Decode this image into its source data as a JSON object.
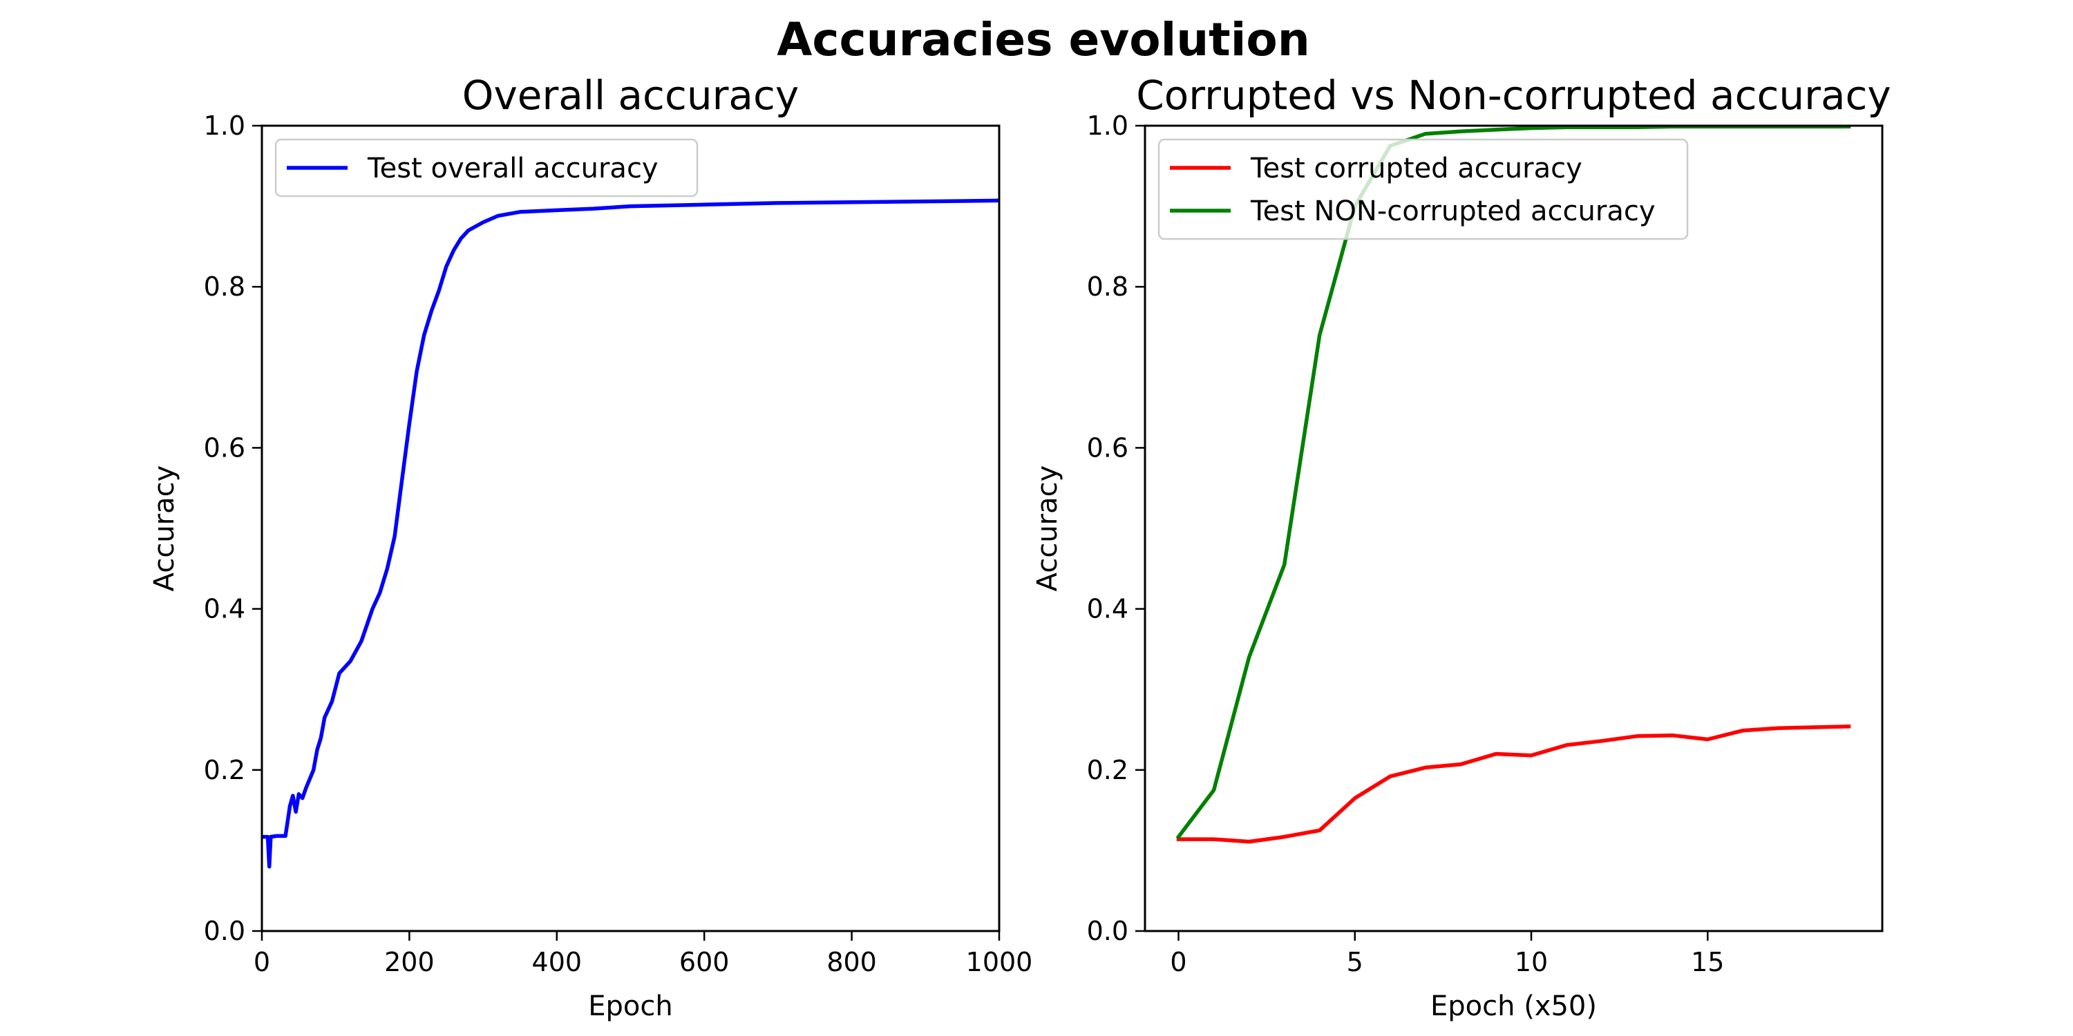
{
  "figure": {
    "suptitle": "Accuracies evolution"
  },
  "chart_data": [
    {
      "type": "line",
      "title": "Overall accuracy",
      "xlabel": "Epoch",
      "ylabel": "Accuracy",
      "xlim": [
        0,
        1000
      ],
      "ylim": [
        0,
        1.0
      ],
      "xticks": [
        0,
        200,
        400,
        600,
        800,
        1000
      ],
      "yticks": [
        0.0,
        0.2,
        0.4,
        0.6,
        0.8,
        1.0
      ],
      "legend_position": "top-left",
      "grid": false,
      "series": [
        {
          "name": "Test overall accuracy",
          "color": "#0000ff",
          "points": [
            [
              1,
              0.117
            ],
            [
              8,
              0.117
            ],
            [
              10,
              0.08
            ],
            [
              12,
              0.117
            ],
            [
              20,
              0.118
            ],
            [
              32,
              0.118
            ],
            [
              38,
              0.155
            ],
            [
              42,
              0.168
            ],
            [
              46,
              0.148
            ],
            [
              50,
              0.17
            ],
            [
              55,
              0.165
            ],
            [
              60,
              0.178
            ],
            [
              70,
              0.2
            ],
            [
              75,
              0.225
            ],
            [
              80,
              0.24
            ],
            [
              85,
              0.265
            ],
            [
              95,
              0.285
            ],
            [
              105,
              0.32
            ],
            [
              120,
              0.335
            ],
            [
              135,
              0.36
            ],
            [
              150,
              0.4
            ],
            [
              160,
              0.42
            ],
            [
              170,
              0.45
            ],
            [
              180,
              0.49
            ],
            [
              190,
              0.56
            ],
            [
              200,
              0.63
            ],
            [
              210,
              0.695
            ],
            [
              220,
              0.74
            ],
            [
              230,
              0.77
            ],
            [
              240,
              0.795
            ],
            [
              250,
              0.825
            ],
            [
              260,
              0.845
            ],
            [
              270,
              0.86
            ],
            [
              280,
              0.87
            ],
            [
              300,
              0.88
            ],
            [
              320,
              0.888
            ],
            [
              350,
              0.893
            ],
            [
              400,
              0.895
            ],
            [
              450,
              0.897
            ],
            [
              500,
              0.9
            ],
            [
              600,
              0.902
            ],
            [
              700,
              0.904
            ],
            [
              800,
              0.905
            ],
            [
              900,
              0.906
            ],
            [
              1000,
              0.907
            ]
          ]
        }
      ]
    },
    {
      "type": "line",
      "title": "Corrupted vs Non-corrupted accuracy",
      "xlabel": "Epoch (x50)",
      "ylabel": "Accuracy",
      "xlim": [
        -0.95,
        19.95
      ],
      "ylim": [
        0,
        1.0
      ],
      "xticks": [
        0,
        5,
        10,
        15
      ],
      "yticks": [
        0.0,
        0.2,
        0.4,
        0.6,
        0.8,
        1.0
      ],
      "legend_position": "top-left",
      "grid": false,
      "series": [
        {
          "name": "Test corrupted accuracy",
          "color": "#ff0000",
          "points": [
            [
              0,
              0.114
            ],
            [
              1,
              0.114
            ],
            [
              2,
              0.111
            ],
            [
              3,
              0.117
            ],
            [
              4,
              0.125
            ],
            [
              5,
              0.165
            ],
            [
              6,
              0.192
            ],
            [
              7,
              0.203
            ],
            [
              8,
              0.207
            ],
            [
              9,
              0.22
            ],
            [
              10,
              0.218
            ],
            [
              11,
              0.231
            ],
            [
              12,
              0.236
            ],
            [
              13,
              0.242
            ],
            [
              14,
              0.243
            ],
            [
              15,
              0.238
            ],
            [
              16,
              0.249
            ],
            [
              17,
              0.252
            ],
            [
              18,
              0.253
            ],
            [
              19,
              0.254
            ]
          ]
        },
        {
          "name": "Test NON-corrupted accuracy",
          "color": "#008000",
          "points": [
            [
              0,
              0.117
            ],
            [
              1,
              0.175
            ],
            [
              2,
              0.34
            ],
            [
              3,
              0.455
            ],
            [
              4,
              0.74
            ],
            [
              5,
              0.9
            ],
            [
              6,
              0.975
            ],
            [
              7,
              0.99
            ],
            [
              8,
              0.993
            ],
            [
              9,
              0.995
            ],
            [
              10,
              0.997
            ],
            [
              11,
              0.998
            ],
            [
              12,
              0.998
            ],
            [
              13,
              0.998
            ],
            [
              14,
              0.999
            ],
            [
              15,
              0.999
            ],
            [
              16,
              0.999
            ],
            [
              17,
              0.999
            ],
            [
              18,
              0.999
            ],
            [
              19,
              0.999
            ]
          ]
        }
      ]
    }
  ]
}
